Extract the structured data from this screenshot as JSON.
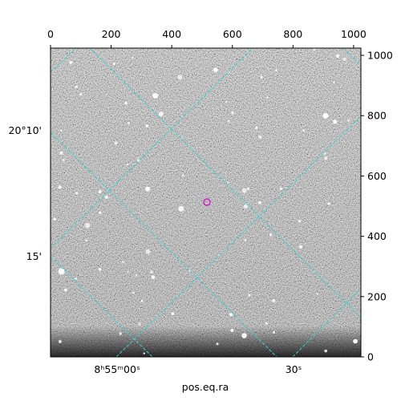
{
  "chart_data": {
    "type": "image",
    "xlabel": "pos.eq.ra",
    "xlim": [
      0,
      1024
    ],
    "ylim": [
      0,
      1024
    ],
    "xticks": [
      0,
      200,
      400,
      600,
      800,
      1000
    ],
    "yticks": [
      0,
      200,
      400,
      600,
      800,
      1000
    ],
    "world_xticks": [
      "8ʰ55ᵐ00ˢ",
      "30ˢ"
    ],
    "world_yticks": [
      "20°10'",
      "15'"
    ],
    "grid_color": "#3fd0d0",
    "marker_color": "#d020d0"
  }
}
